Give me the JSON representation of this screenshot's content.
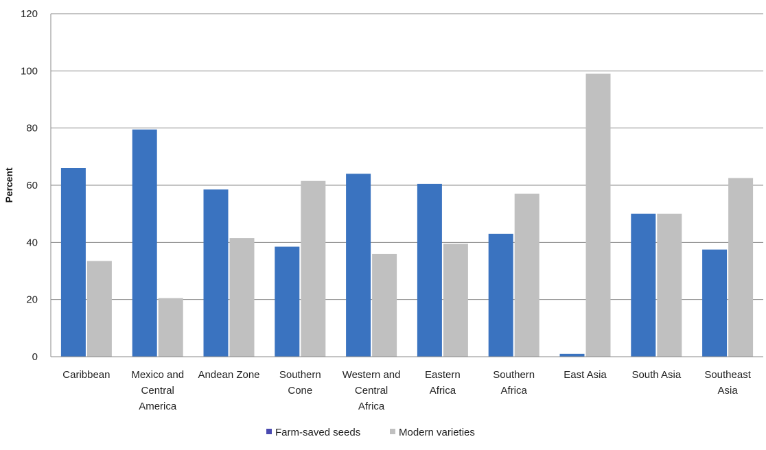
{
  "chart_data": {
    "type": "bar",
    "title": "",
    "xlabel": "",
    "ylabel": "Percent",
    "ylim": [
      0,
      120
    ],
    "yticks": [
      0,
      20,
      40,
      60,
      80,
      100,
      120
    ],
    "grid": true,
    "legend_position": "bottom",
    "categories": [
      [
        "Caribbean"
      ],
      [
        "Mexico and",
        "Central",
        "America"
      ],
      [
        "Andean Zone"
      ],
      [
        "Southern",
        "Cone"
      ],
      [
        "Western and",
        "Central",
        "Africa"
      ],
      [
        "Eastern",
        "Africa"
      ],
      [
        "Southern",
        "Africa"
      ],
      [
        "East Asia"
      ],
      [
        "South Asia"
      ],
      [
        "Southeast",
        "Asia"
      ]
    ],
    "series": [
      {
        "name": "Farm-saved seeds",
        "color": "#3a73c0",
        "legend_color": "#4a4ab0",
        "values": [
          66,
          79.5,
          58.5,
          38.5,
          64,
          60.5,
          43,
          1,
          50,
          37.5
        ]
      },
      {
        "name": "Modern varieties",
        "color": "#c0c0c0",
        "legend_color": "#c0c0c0",
        "values": [
          33.5,
          20.5,
          41.5,
          61.5,
          36,
          39.5,
          57,
          99,
          50,
          62.5
        ]
      }
    ]
  }
}
